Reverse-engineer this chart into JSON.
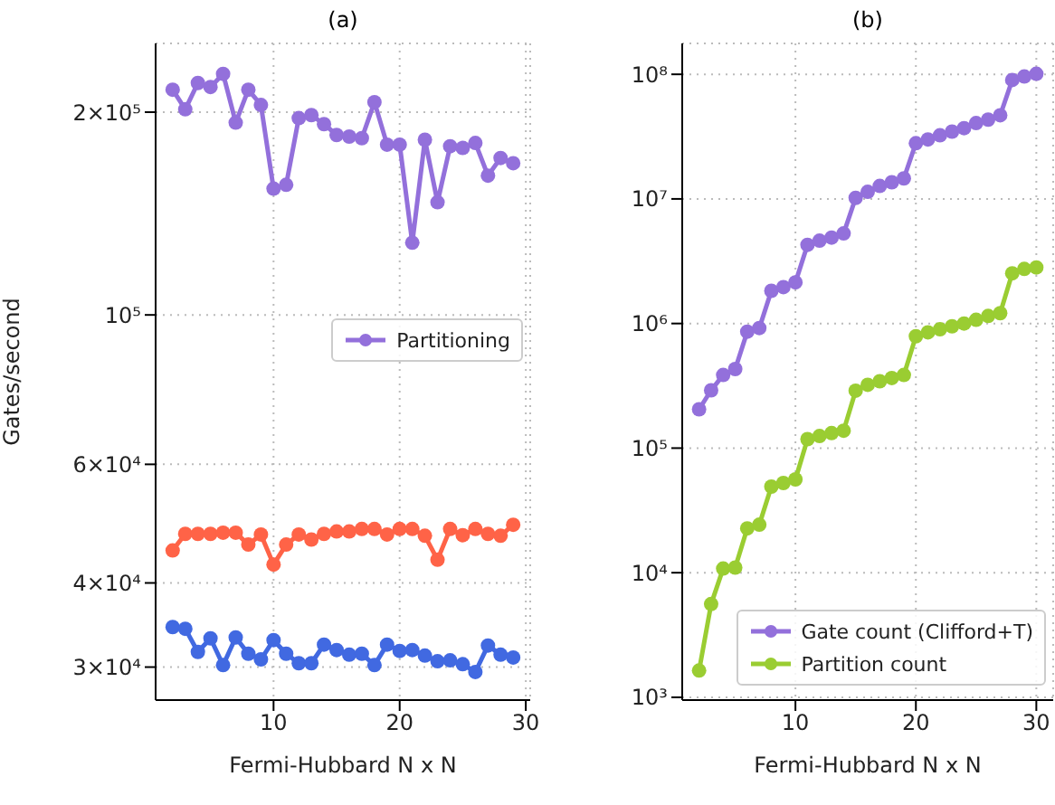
{
  "chart_data": [
    {
      "type": "line",
      "title": "(a)",
      "xlabel": "Fermi-Hubbard N x N",
      "ylabel": "Gates/second",
      "log": "y",
      "grid": true,
      "legend": "center right",
      "marker": "circle",
      "line_style": "solid",
      "x": [
        2,
        3,
        4,
        5,
        6,
        7,
        8,
        9,
        10,
        11,
        12,
        13,
        14,
        15,
        16,
        17,
        18,
        19,
        20,
        21,
        22,
        23,
        24,
        25,
        26,
        27,
        28,
        29
      ],
      "xlim": [
        0.65,
        30.35
      ],
      "xticks": [
        10,
        20,
        30
      ],
      "ylim": [
        26800,
        253000
      ],
      "yticks": [
        {
          "value": 30000,
          "label": "3×10⁴"
        },
        {
          "value": 40000,
          "label": "4×10⁴"
        },
        {
          "value": 60000,
          "label": "6×10⁴"
        },
        {
          "value": 100000,
          "label": "10⁵"
        },
        {
          "value": 200000,
          "label": "2×10⁵"
        }
      ],
      "series": [
        {
          "name": "Partitioning",
          "color": "#9370db",
          "values": [
            216000,
            202000,
            221000,
            218000,
            228000,
            193000,
            216000,
            205000,
            154000,
            156000,
            196000,
            198000,
            192000,
            185000,
            184000,
            183000,
            207000,
            179000,
            179000,
            128000,
            182000,
            147000,
            178000,
            177000,
            180000,
            161000,
            171000,
            168000
          ]
        },
        {
          "color": "#ff6347",
          "values": [
            44700,
            47300,
            47300,
            47300,
            47500,
            47500,
            45600,
            47200,
            42600,
            45600,
            47200,
            46400,
            47300,
            47700,
            47700,
            48100,
            48100,
            47200,
            48100,
            48100,
            47000,
            43300,
            48100,
            47100,
            48100,
            47300,
            47000,
            48800
          ]
        },
        {
          "color": "#4169e1",
          "values": [
            34400,
            34200,
            31600,
            33100,
            30200,
            33200,
            31400,
            30800,
            32900,
            31400,
            30400,
            30400,
            32400,
            31800,
            31300,
            31400,
            30200,
            32400,
            31700,
            31800,
            31200,
            30600,
            30700,
            30300,
            29500,
            32300,
            31300,
            31000
          ]
        }
      ]
    },
    {
      "type": "line",
      "title": "(b)",
      "xlabel": "Fermi-Hubbard N x N",
      "log": "y",
      "grid": true,
      "legend": "bottom right",
      "marker": "circle",
      "line_style": "solid",
      "x": [
        2,
        3,
        4,
        5,
        6,
        7,
        8,
        9,
        10,
        11,
        12,
        13,
        14,
        15,
        16,
        17,
        18,
        19,
        20,
        21,
        22,
        23,
        24,
        25,
        26,
        27,
        28,
        29,
        30
      ],
      "xlim": [
        0.6,
        31.4
      ],
      "xticks": [
        10,
        20,
        30
      ],
      "ylim": [
        950,
        177000000
      ],
      "yticks": [
        {
          "value": 1000,
          "label": "10³"
        },
        {
          "value": 10000,
          "label": "10⁴"
        },
        {
          "value": 100000,
          "label": "10⁵"
        },
        {
          "value": 1000000,
          "label": "10⁶"
        },
        {
          "value": 10000000,
          "label": "10⁷"
        },
        {
          "value": 100000000,
          "label": "10⁸"
        }
      ],
      "series": [
        {
          "name": "Gate count (Clifford+T)",
          "color": "#9370db",
          "values": [
            205000,
            291000,
            386000,
            431000,
            860000,
            920000,
            1830000,
            1960000,
            2140000,
            4280000,
            4620000,
            4890000,
            5280000,
            10200000,
            11400000,
            12700000,
            13600000,
            14600000,
            28000000,
            30000000,
            32400000,
            34700000,
            37000000,
            40600000,
            43300000,
            46900000,
            90000000,
            96000000,
            101000000
          ]
        },
        {
          "name": "Partition count",
          "color": "#9acd32",
          "values": [
            1640,
            5600,
            10800,
            11000,
            22700,
            24300,
            49100,
            52500,
            56100,
            118000,
            125000,
            132000,
            138000,
            289000,
            322000,
            344000,
            365000,
            386000,
            790000,
            850000,
            898000,
            950000,
            1000000,
            1070000,
            1150000,
            1210000,
            2530000,
            2740000,
            2820000
          ]
        }
      ]
    }
  ]
}
